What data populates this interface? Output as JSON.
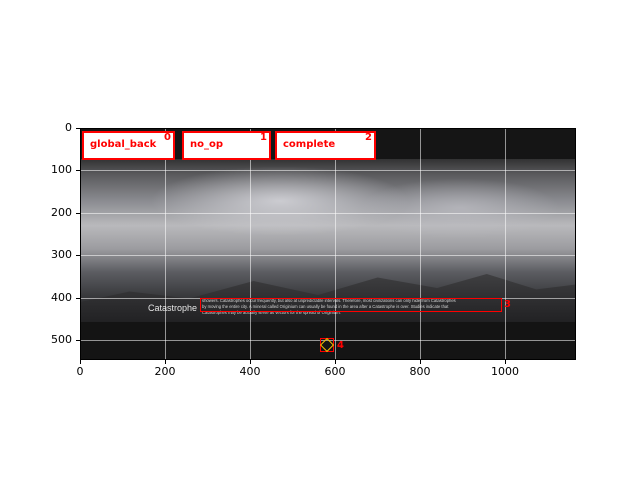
{
  "figure": {
    "x_ticks": [
      "0",
      "200",
      "400",
      "600",
      "800",
      "1000"
    ],
    "y_ticks": [
      "0",
      "100",
      "200",
      "300",
      "400",
      "500"
    ]
  },
  "screenshot": {
    "label": "Catastrophe",
    "description_lines": [
      "showers. Catastrophes occur frequently, but also at unpredictable intervals. Therefore, most civilizations can only hide from Catastrophes",
      "by moving the entire city. A mineral called Originium can usually be found in the area after a Catastrophe is over. Studies indicate that",
      "Catastrophes may be actually serve as vectors for the spread of Originium."
    ]
  },
  "actions": [
    {
      "index": "0",
      "label": "global_back"
    },
    {
      "index": "1",
      "label": "no_op"
    },
    {
      "index": "2",
      "label": "complete"
    },
    {
      "index": "3",
      "label": ""
    },
    {
      "index": "4",
      "label": ""
    }
  ],
  "colors": {
    "annotation": "#ff0000",
    "marker": "#f2c200"
  }
}
